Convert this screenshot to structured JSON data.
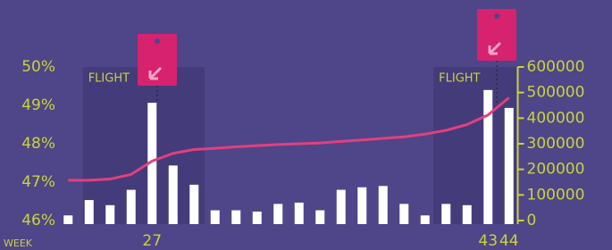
{
  "chart_data": {
    "type": "bar-line",
    "x_label": "WEEK",
    "x": [
      23,
      24,
      25,
      26,
      27,
      28,
      29,
      30,
      31,
      32,
      33,
      34,
      35,
      36,
      37,
      38,
      39,
      40,
      41,
      42,
      43,
      44
    ],
    "xlim": [
      22.5,
      44.5
    ],
    "xticks": [
      27,
      43,
      44
    ],
    "series": [
      {
        "type": "bar",
        "axis": "y2",
        "color": "#ffffff",
        "values": [
          20000,
          80000,
          60000,
          120000,
          460000,
          215000,
          140000,
          40000,
          40000,
          35000,
          65000,
          70000,
          40000,
          120000,
          130000,
          135000,
          65000,
          20000,
          65000,
          60000,
          510000,
          440000
        ]
      },
      {
        "type": "line",
        "axis": "y",
        "color": "#e0407f",
        "values": [
          47.05,
          47.05,
          47.08,
          47.2,
          47.55,
          47.75,
          47.85,
          47.88,
          47.92,
          47.95,
          47.98,
          48.0,
          48.02,
          48.06,
          48.1,
          48.14,
          48.18,
          48.25,
          48.35,
          48.5,
          48.75,
          49.2
        ]
      }
    ],
    "ylim": [
      46,
      50
    ],
    "yticks": [
      {
        "value": 46,
        "label": "46%"
      },
      {
        "value": 47,
        "label": "47%"
      },
      {
        "value": 48,
        "label": "48%"
      },
      {
        "value": 49,
        "label": "49%"
      },
      {
        "value": 50,
        "label": "50%"
      }
    ],
    "y2lim": [
      0,
      600000
    ],
    "y2ticks": [
      0,
      100000,
      200000,
      300000,
      400000,
      500000,
      600000
    ],
    "flights": [
      {
        "label": "FLIGHT",
        "x_range": [
          23.7,
          29.5
        ]
      },
      {
        "label": "FLIGHT",
        "x_range": [
          40.4,
          44.4
        ]
      }
    ]
  }
}
